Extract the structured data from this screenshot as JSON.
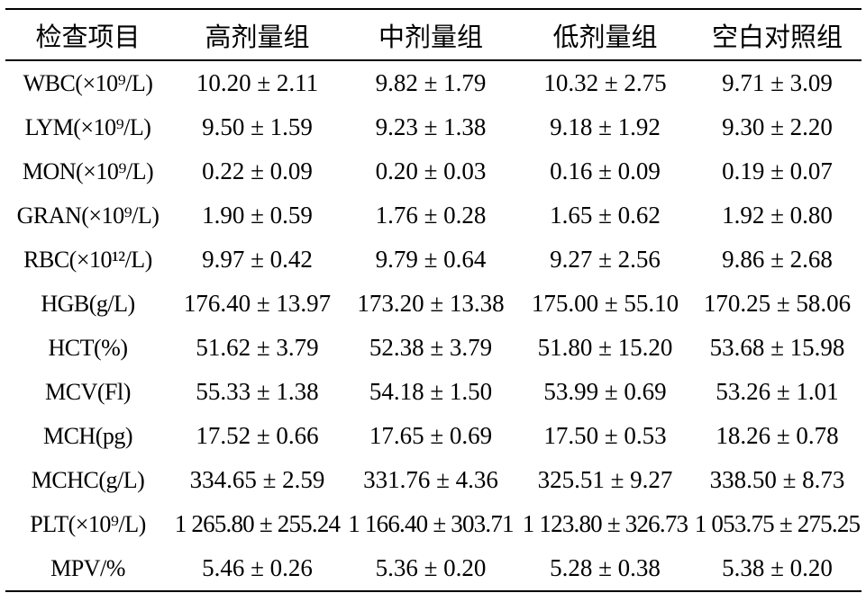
{
  "table": {
    "headers": [
      "检查项目",
      "高剂量组",
      "中剂量组",
      "低剂量组",
      "空白对照组"
    ],
    "rows": [
      {
        "label": "WBC(×10⁹/L)",
        "values": [
          "10.20 ± 2.11",
          "9.82 ± 1.79",
          "10.32 ± 2.75",
          "9.71 ± 3.09"
        ]
      },
      {
        "label": "LYM(×10⁹/L)",
        "values": [
          "9.50 ± 1.59",
          "9.23 ± 1.38",
          "9.18 ± 1.92",
          "9.30 ± 2.20"
        ]
      },
      {
        "label": "MON(×10⁹/L)",
        "values": [
          "0.22 ± 0.09",
          "0.20 ± 0.03",
          "0.16 ± 0.09",
          "0.19 ± 0.07"
        ]
      },
      {
        "label": "GRAN(×10⁹/L)",
        "values": [
          "1.90 ± 0.59",
          "1.76 ± 0.28",
          "1.65 ± 0.62",
          "1.92 ± 0.80"
        ]
      },
      {
        "label": "RBC(×10¹²/L)",
        "values": [
          "9.97 ± 0.42",
          "9.79 ± 0.64",
          "9.27 ± 2.56",
          "9.86 ± 2.68"
        ]
      },
      {
        "label": "HGB(g/L)",
        "values": [
          "176.40 ± 13.97",
          "173.20 ± 13.38",
          "175.00 ± 55.10",
          "170.25 ± 58.06"
        ]
      },
      {
        "label": "HCT(%)",
        "values": [
          "51.62 ± 3.79",
          "52.38 ± 3.79",
          "51.80 ± 15.20",
          "53.68 ± 15.98"
        ]
      },
      {
        "label": "MCV(Fl)",
        "values": [
          "55.33 ± 1.38",
          "54.18 ± 1.50",
          "53.99 ± 0.69",
          "53.26 ± 1.01"
        ]
      },
      {
        "label": "MCH(pg)",
        "values": [
          "17.52 ± 0.66",
          "17.65 ± 0.69",
          "17.50 ± 0.53",
          "18.26 ± 0.78"
        ]
      },
      {
        "label": "MCHC(g/L)",
        "values": [
          "334.65 ± 2.59",
          "331.76 ± 4.36",
          "325.51 ± 9.27",
          "338.50 ± 8.73"
        ]
      },
      {
        "label": "PLT(×10⁹/L)",
        "values": [
          "1 265.80 ± 255.24",
          "1 166.40 ± 303.71",
          "1 123.80 ± 326.73",
          "1 053.75 ± 275.25"
        ]
      },
      {
        "label": "MPV/%",
        "values": [
          "5.46 ± 0.26",
          "5.36 ± 0.20",
          "5.28 ± 0.38",
          "5.38 ± 0.20"
        ]
      }
    ]
  }
}
